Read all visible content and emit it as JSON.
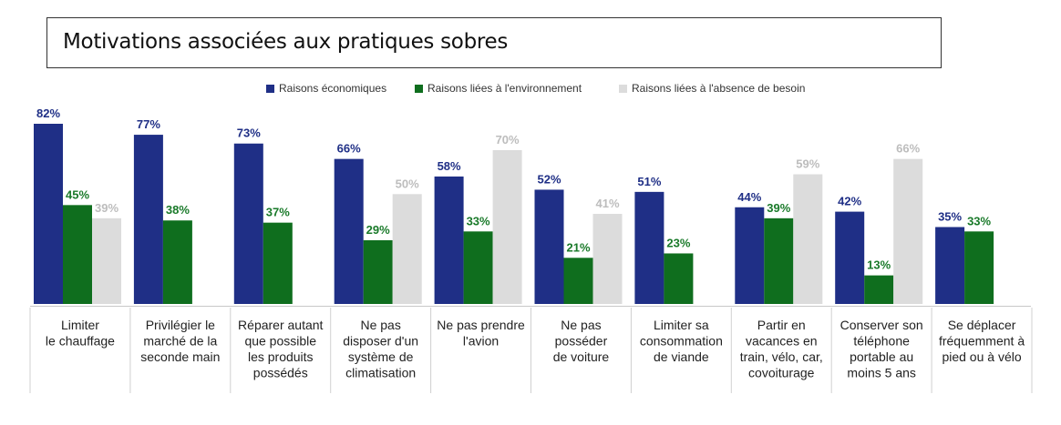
{
  "title": "Motivations associées aux pratiques sobres",
  "chart_data": {
    "type": "bar",
    "categories": [
      [
        "Limiter",
        "le chauffage"
      ],
      [
        "Privilégier le",
        "marché de la",
        "seconde main"
      ],
      [
        "Réparer autant",
        "que possible",
        "les produits",
        "possédés"
      ],
      [
        "Ne pas",
        "disposer d'un",
        "système de",
        "climatisation"
      ],
      [
        "Ne pas prendre",
        "l'avion"
      ],
      [
        "Ne pas",
        "posséder",
        "de voiture"
      ],
      [
        "Limiter sa",
        "consommation",
        "de viande"
      ],
      [
        "Partir en",
        "vacances en",
        "train, vélo, car,",
        "covoiturage"
      ],
      [
        "Conserver son",
        "téléphone",
        "portable au",
        "moins 5 ans"
      ],
      [
        "Se déplacer",
        "fréquemment à",
        "pied ou à vélo"
      ]
    ],
    "series": [
      {
        "name": "Raisons économiques",
        "color": "#1f2f86",
        "label_color": "#1f2f86",
        "values": [
          82,
          77,
          73,
          66,
          58,
          52,
          51,
          44,
          42,
          35
        ]
      },
      {
        "name": "Raisons liées à l'environnement",
        "color": "#0f6e1e",
        "label_color": "#1a7a2a",
        "values": [
          45,
          38,
          37,
          29,
          33,
          21,
          23,
          39,
          13,
          33
        ]
      },
      {
        "name": "Raisons liées à l'absence de besoin",
        "color": "#dcdcdc",
        "label_color": "#bdbdbd",
        "values": [
          39,
          null,
          null,
          50,
          70,
          41,
          null,
          59,
          66,
          null
        ]
      }
    ],
    "value_suffix": "%",
    "ylim": [
      0,
      82
    ],
    "legend_position": "top-center",
    "grid": false
  }
}
